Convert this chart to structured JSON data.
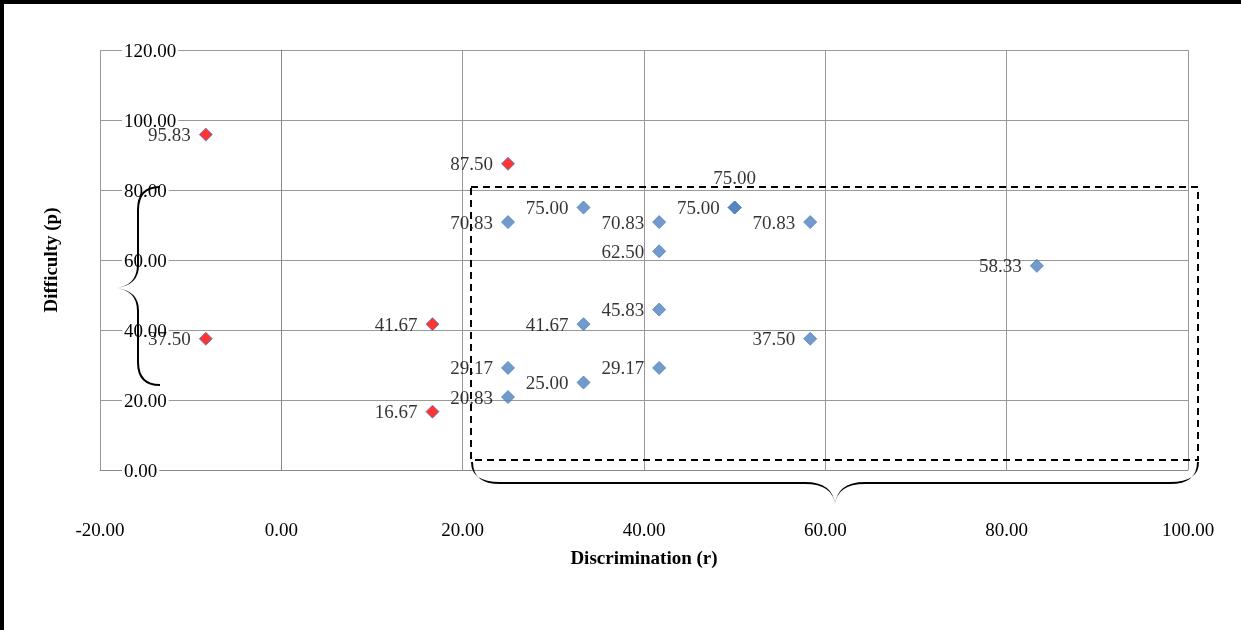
{
  "chart_data": {
    "type": "scatter",
    "xlabel": "Discrimination (r)",
    "ylabel": "Difficulty (p)",
    "xlim": [
      -20,
      100
    ],
    "xticks": [
      {
        "value": -20,
        "label": "-20.00"
      },
      {
        "value": 0,
        "label": "0.00"
      },
      {
        "value": 20,
        "label": "20.00"
      },
      {
        "value": 40,
        "label": "40.00"
      },
      {
        "value": 60,
        "label": "60.00"
      },
      {
        "value": 80,
        "label": "80.00"
      },
      {
        "value": 100,
        "label": "100.00"
      }
    ],
    "ylim": [
      0,
      120
    ],
    "yticks": [
      {
        "value": 0,
        "label": "0.00"
      },
      {
        "value": 20,
        "label": "20.00"
      },
      {
        "value": 40,
        "label": "40.00"
      },
      {
        "value": 60,
        "label": "60.00"
      },
      {
        "value": 80,
        "label": "80.00"
      },
      {
        "value": 100,
        "label": "100.00"
      },
      {
        "value": 120,
        "label": "120.00"
      }
    ],
    "grid": true,
    "marker": "diamond",
    "series": [
      {
        "color": "#ff0000",
        "x": [
          -8.33,
          -8.33,
          16.67,
          16.67,
          25
        ],
        "values": [
          95.83,
          37.5,
          41.67,
          16.67,
          87.5
        ],
        "value_labels": [
          "95.83",
          "37.50",
          "41.67",
          "16.67",
          "87.50"
        ]
      },
      {
        "color": "#4f81bd",
        "x": [
          25,
          25,
          25,
          33.33,
          33.33,
          33.33,
          41.67,
          41.67,
          41.67,
          41.67,
          50,
          50,
          58.33,
          58.33,
          83.33
        ],
        "values": [
          70.83,
          29.17,
          20.83,
          75,
          41.67,
          25,
          70.83,
          62.5,
          45.83,
          29.17,
          75,
          75,
          70.83,
          37.5,
          58.33
        ],
        "value_labels": [
          "70.83",
          "29.17",
          "20.83",
          "75.00",
          "41.67",
          "25.00",
          "70.83",
          "62.50",
          "45.83",
          "29.17",
          "75.00",
          "75.00",
          "70.83",
          "37.50",
          "58.33"
        ]
      }
    ]
  }
}
